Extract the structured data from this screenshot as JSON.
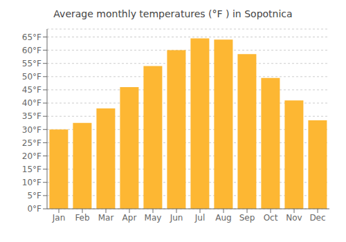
{
  "chart_data": {
    "type": "bar",
    "title": "Average monthly temperatures (°F ) in Sopotnica",
    "categories": [
      "Jan",
      "Feb",
      "Mar",
      "Apr",
      "May",
      "Jun",
      "Jul",
      "Aug",
      "Sep",
      "Oct",
      "Nov",
      "Dec"
    ],
    "values": [
      30,
      32.5,
      38,
      46,
      54,
      60,
      64.5,
      64,
      58.5,
      49.5,
      41,
      33.5
    ],
    "color": "#FDB733",
    "ylim": [
      0,
      68
    ],
    "yticks": [
      {
        "value": 0,
        "label": "0°F"
      },
      {
        "value": 5,
        "label": "5°F"
      },
      {
        "value": 10,
        "label": "10°F"
      },
      {
        "value": 15,
        "label": "15°F"
      },
      {
        "value": 20,
        "label": "20°F"
      },
      {
        "value": 25,
        "label": "25°F"
      },
      {
        "value": 30,
        "label": "30°F"
      },
      {
        "value": 35,
        "label": "35°F"
      },
      {
        "value": 40,
        "label": "40°F"
      },
      {
        "value": 45,
        "label": "45°F"
      },
      {
        "value": 50,
        "label": "50°F"
      },
      {
        "value": 55,
        "label": "55°F"
      },
      {
        "value": 60,
        "label": "60°F"
      },
      {
        "value": 65,
        "label": "65°F"
      }
    ],
    "grid": true
  }
}
